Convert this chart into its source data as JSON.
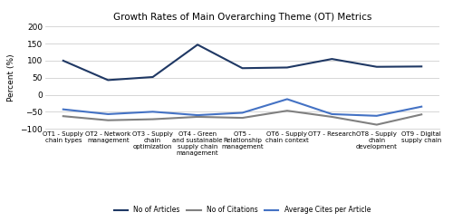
{
  "title": "Growth Rates of Main Overarching Theme (OT) Metrics",
  "ylabel": "Percent (%)",
  "categories": [
    "OT1 - Supply\nchain types",
    "OT2 - Network\nmanagement",
    "OT3 - Supply\nchain\noptimization",
    "OT4 - Green\nand sustainable\nsupply chain\nmanagement",
    "OT5 -\nRelationship\nmanagement",
    "OT6 - Supply\nchain context",
    "OT7 - Research",
    "OT8 - Supply\nchain\ndevelopment",
    "OT9 - Digital\nsupply chain"
  ],
  "no_of_articles": [
    100,
    43,
    52,
    147,
    78,
    80,
    105,
    82,
    83
  ],
  "no_of_citations": [
    -63,
    -75,
    -72,
    -65,
    -68,
    -47,
    -65,
    -88,
    -58
  ],
  "avg_cites_per_article": [
    -43,
    -57,
    -50,
    -60,
    -53,
    -13,
    -57,
    -62,
    -35
  ],
  "ylim": [
    -100,
    200
  ],
  "yticks": [
    -100,
    -50,
    0,
    50,
    100,
    150,
    200
  ],
  "color_articles": "#1f3864",
  "color_citations": "#808080",
  "color_avg_cites": "#4472c4",
  "legend_labels": [
    "No of Articles",
    "No of Citations",
    "Average Cites per Article"
  ],
  "figsize": [
    5.0,
    2.45
  ],
  "dpi": 100
}
